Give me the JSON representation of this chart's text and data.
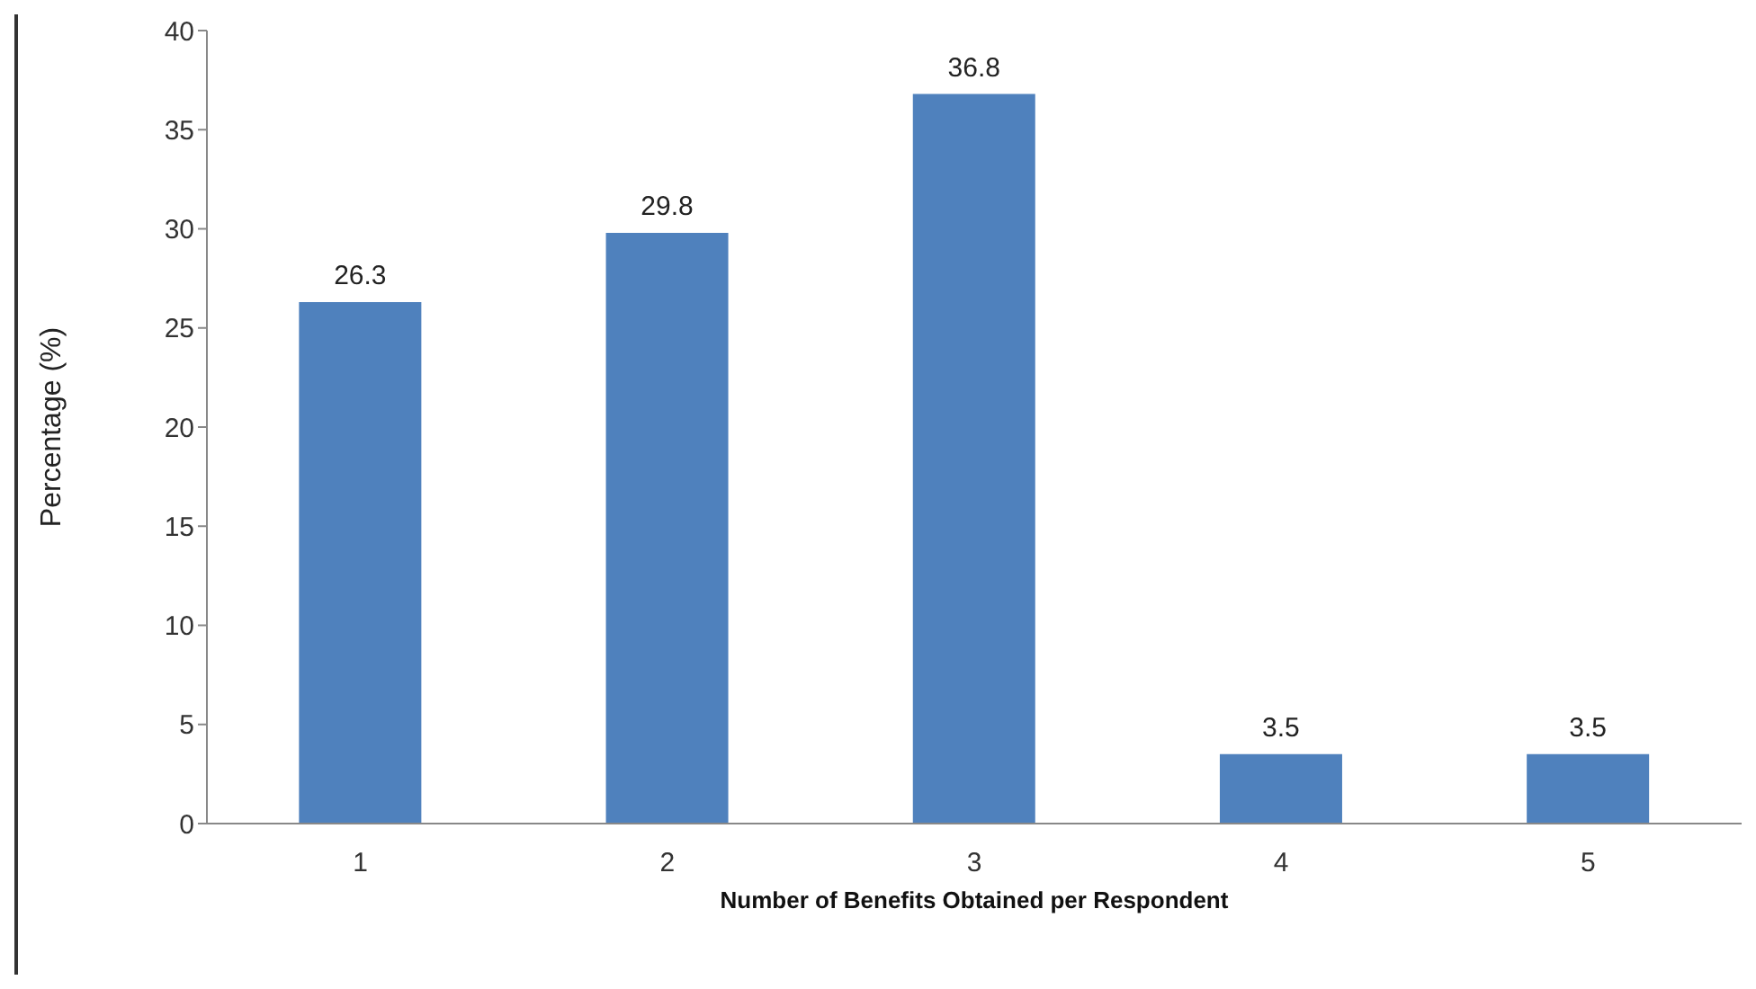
{
  "chart_data": {
    "type": "bar",
    "xlabel": "Number of Benefits Obtained per Respondent",
    "ylabel": "Percentage (%)",
    "categories": [
      "1",
      "2",
      "3",
      "4",
      "5"
    ],
    "values": [
      26.3,
      29.8,
      36.8,
      3.5,
      3.5
    ],
    "color": "#4f81bd",
    "ylim": [
      0,
      40
    ],
    "yticks": [
      0,
      5,
      10,
      15,
      20,
      25,
      30,
      35,
      40
    ],
    "grid": false,
    "legend": false,
    "data_labels": true
  }
}
